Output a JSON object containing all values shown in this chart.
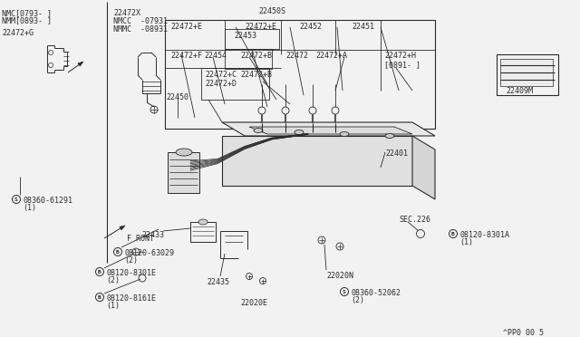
{
  "bg_color": "#f2f2f2",
  "line_color": "#2a2a2a",
  "font_size": 6.0,
  "labels": {
    "nmc_line1": "NMC[0793- ]",
    "nmc_line2": "NMM[0893- ]",
    "part_22472G": "22472+G",
    "part_22472X": "22472X",
    "nmcc_line": "NMCC  -07931",
    "nmmc_line": "NMMC  -08931",
    "part_22450S": "22450S",
    "part_22472E1": "22472+E",
    "part_22453": "22453",
    "part_22472E2": "22472+E",
    "part_22452": "22452",
    "part_22451": "22451",
    "part_22472F": "22472+F",
    "part_22454": "22454",
    "part_22472B1": "22472+B",
    "part_22472B2": "22472+B",
    "part_22472": "22472",
    "part_22472A": "22472+A",
    "part_22472H": "22472+H",
    "part_0891": "[0891- ]",
    "part_22450": "22450",
    "part_22472C": "22472+C",
    "part_22472D": "22472+D",
    "part_22401": "22401",
    "part_22409M": "22409M",
    "part_08360_61291": "08360-61291",
    "qty_1a": "(1)",
    "front": "F RONT",
    "part_08120_63029": "08120-63029",
    "qty_2a": "(2)",
    "part_22433": "22433",
    "part_22435": "22435",
    "part_08120_8301E": "08120-8301E",
    "qty_2b": "(2)",
    "part_08120_8161E": "08120-8161E",
    "qty_1b": "(1)",
    "part_22020E": "22020E",
    "part_22020N": "22020N",
    "part_08360_52062": "08360-52062",
    "qty_2c": "(2)",
    "sec226": "SEC.226",
    "part_08120_8301A": "08120-8301A",
    "qty_1c": "(1)",
    "copyright": "^PP0 00 5"
  }
}
